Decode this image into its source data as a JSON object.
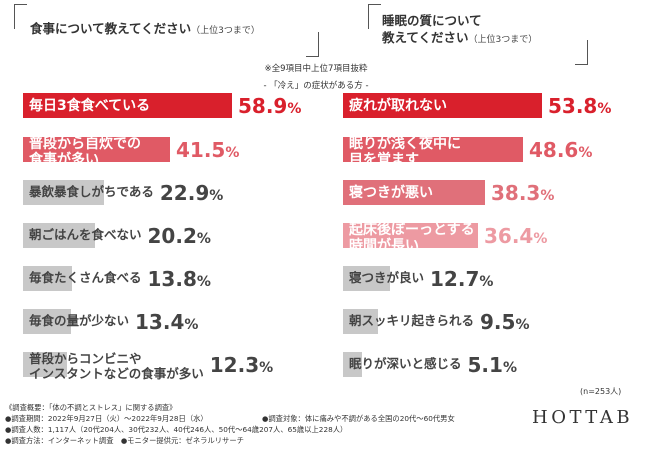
{
  "header": {
    "left_title": "食事について教えてください",
    "left_note": "（上位3つまで）",
    "right_title_line1": "睡眠の質について",
    "right_title_line2": "教えてください",
    "right_note": "（上位3つまで）",
    "subnote": "※全9項目中上位7項目抜粋",
    "group_label": "- 「冷え」の症状がある方 -"
  },
  "chart_data": [
    {
      "type": "bar",
      "title": "食事について教えてください（上位3つまで）",
      "unit": "%",
      "categories": [
        "毎日3食食べている",
        "普段から自炊での食事が多い",
        "暴飲暴食しがちである",
        "朝ごはんを食べない",
        "毎食たくさん食べる",
        "毎食の量が少ない",
        "普段からコンビニやインスタントなどの食事が多い"
      ],
      "category_lines": [
        [
          "毎日3食食べている"
        ],
        [
          "普段から自炊での",
          "食事が多い"
        ],
        [
          "暴飲暴食しがちである"
        ],
        [
          "朝ごはんを食べない"
        ],
        [
          "毎食たくさん食べる"
        ],
        [
          "毎食の量が少ない"
        ],
        [
          "普段からコンビニや",
          "インスタントなどの食事が多い"
        ]
      ],
      "values": [
        58.9,
        41.5,
        22.9,
        20.2,
        13.8,
        13.4,
        12.3
      ],
      "value_labels": [
        "58.9",
        "41.5",
        "22.9",
        "20.2",
        "13.8",
        "13.4",
        "12.3"
      ],
      "bar_colors": [
        "#d9202c",
        "#e05a65",
        "#c8c8c8",
        "#c8c8c8",
        "#c8c8c8",
        "#c8c8c8",
        "#c8c8c8"
      ],
      "label_colors": [
        "#ffffff",
        "#ffffff",
        "#444444",
        "#444444",
        "#444444",
        "#444444",
        "#444444"
      ],
      "value_colors": [
        "#d9202c",
        "#e05a65",
        "#444444",
        "#444444",
        "#444444",
        "#444444",
        "#444444"
      ]
    },
    {
      "type": "bar",
      "title": "睡眠の質について教えてください（上位3つまで）",
      "unit": "%",
      "categories": [
        "疲れが取れない",
        "眠りが浅く夜中に目を覚ます",
        "寝つきが悪い",
        "起床後ぼーっとする時間が長い",
        "寝つきが良い",
        "朝スッキリ起きられる",
        "眠りが深いと感じる"
      ],
      "category_lines": [
        [
          "疲れが取れない"
        ],
        [
          "眠りが浅く夜中に",
          "目を覚ます"
        ],
        [
          "寝つきが悪い"
        ],
        [
          "起床後ぼーっとする",
          "時間が長い"
        ],
        [
          "寝つきが良い"
        ],
        [
          "朝スッキリ起きられる"
        ],
        [
          "眠りが深いと感じる"
        ]
      ],
      "values": [
        53.8,
        48.6,
        38.3,
        36.4,
        12.7,
        9.5,
        5.1
      ],
      "value_labels": [
        "53.8",
        "48.6",
        "38.3",
        "36.4",
        "12.7",
        "9.5",
        "5.1"
      ],
      "bar_colors": [
        "#d9202c",
        "#e05a65",
        "#e0707a",
        "#ed9aa2",
        "#c8c8c8",
        "#c8c8c8",
        "#c8c8c8"
      ],
      "label_colors": [
        "#ffffff",
        "#ffffff",
        "#ffffff",
        "#ffffff",
        "#444444",
        "#444444",
        "#444444"
      ],
      "value_colors": [
        "#d9202c",
        "#e05a65",
        "#e0707a",
        "#ed9aa2",
        "#444444",
        "#444444",
        "#444444"
      ]
    }
  ],
  "sample_size": "(n=253人)",
  "footer": {
    "line1": "《調査概要：「体の不調とストレス」に関する調査》",
    "line2a": "●調査期間：2022年9月27日（火）〜2022年9月28日（水）",
    "line2b": "●調査対象：体に痛みや不調がある全国の20代〜60代男女",
    "line3": "●調査人数：1,117人（20代204人、30代232人、40代246人、50代〜64歳207人、65歳以上228人）",
    "line4": "●調査方法：インターネット調査　●モニター提供元：ゼネラルリサーチ"
  },
  "brand": "HOTTAB"
}
